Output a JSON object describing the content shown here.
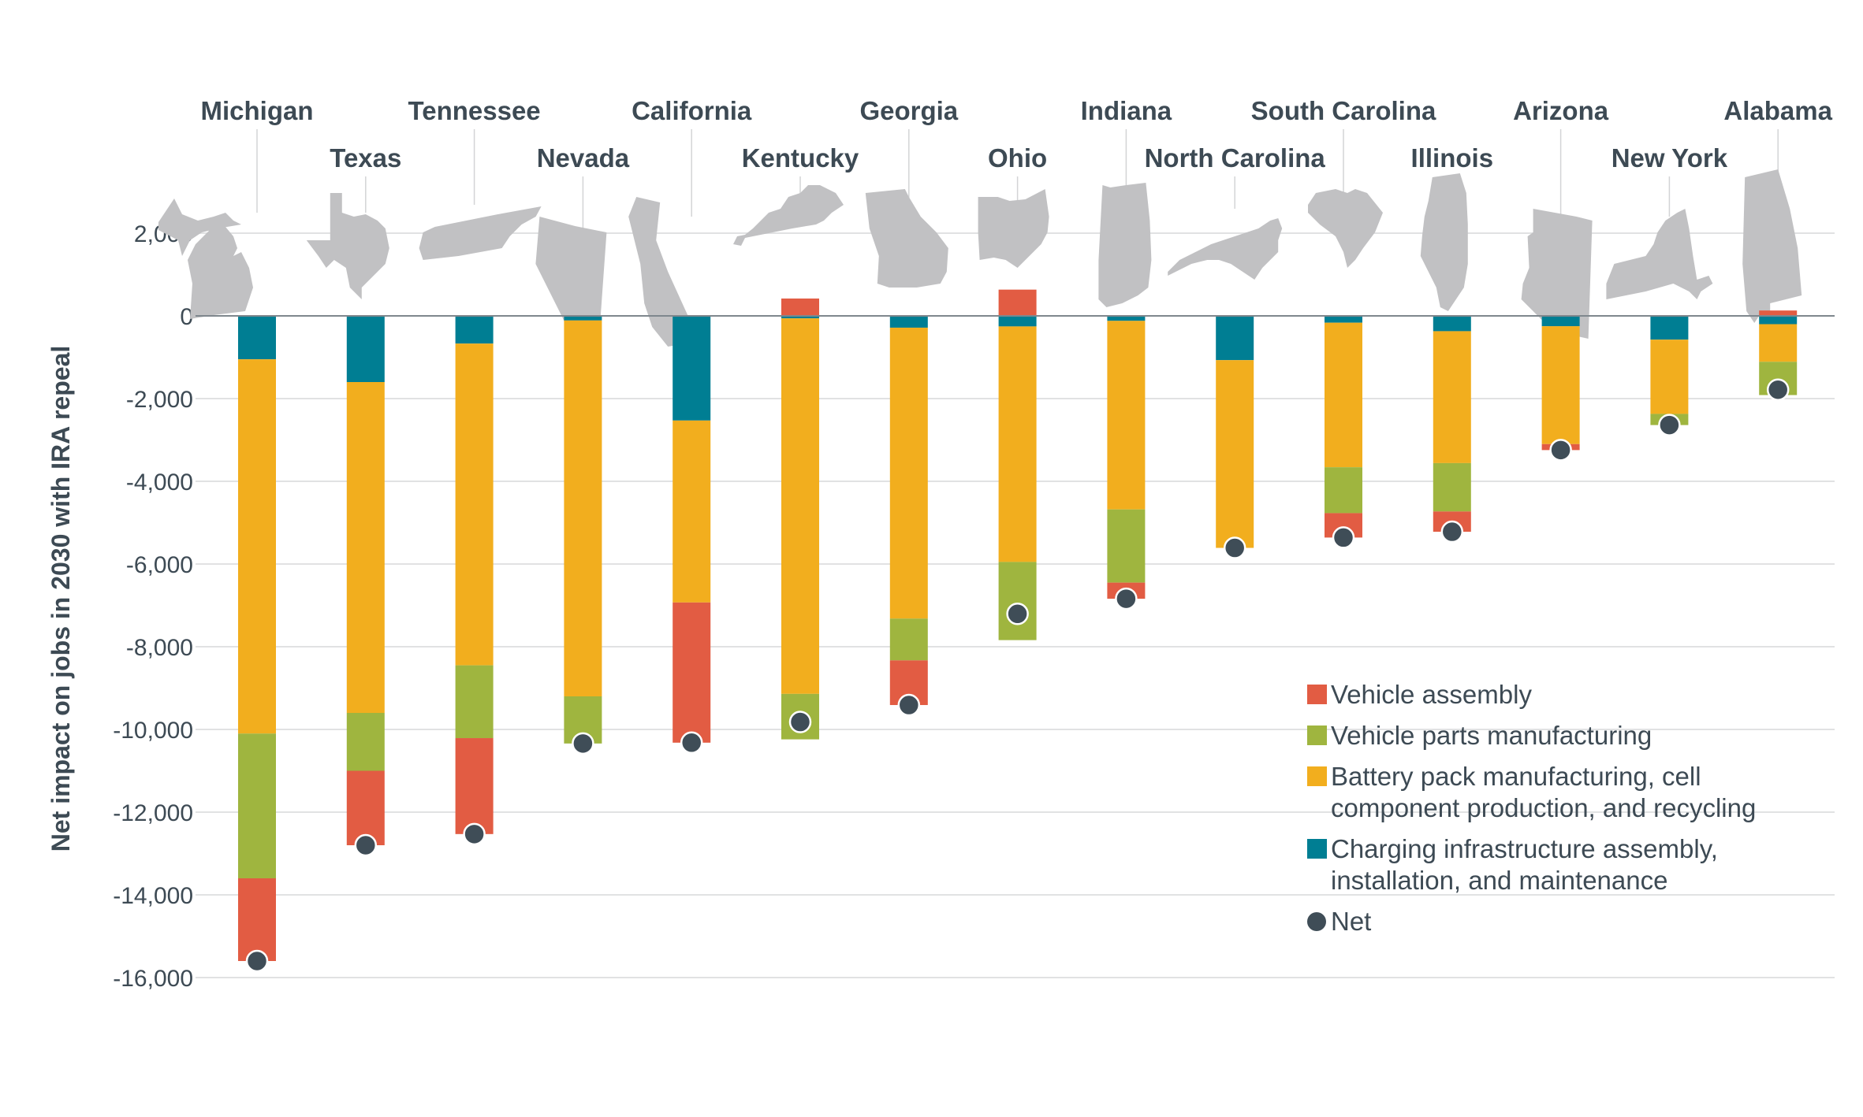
{
  "chart_data": {
    "type": "bar",
    "stacked": true,
    "title": "",
    "xlabel": "",
    "ylabel": "Net impact on jobs in 2030 with IRA repeal",
    "ylim": [
      -16000,
      2000
    ],
    "yticks": [
      2000,
      0,
      -2000,
      -4000,
      -6000,
      -8000,
      -10000,
      -12000,
      -14000,
      -16000
    ],
    "ytick_labels": [
      "2,000",
      "0",
      "-2,000",
      "-4,000",
      "-6,000",
      "-8,000",
      "-10,000",
      "-12,000",
      "-14,000",
      "-16,000"
    ],
    "grid": true,
    "legend_position": "bottom-right",
    "categories": [
      "Michigan",
      "Texas",
      "Tennessee",
      "Nevada",
      "California",
      "Kentucky",
      "Georgia",
      "Ohio",
      "Indiana",
      "North Carolina",
      "South Carolina",
      "Illinois",
      "Arizona",
      "New York",
      "Alabama"
    ],
    "series": [
      {
        "key": "charging",
        "name": "Charging infrastructure assembly, installation, and maintenance",
        "color": "#007e93",
        "values": [
          -1050,
          -1600,
          -670,
          -110,
          -2530,
          -60,
          -285,
          -255,
          -120,
          -1070,
          -165,
          -370,
          -250,
          -575,
          -200
        ]
      },
      {
        "key": "battery",
        "name": "Battery pack manufacturing, cell component production, and recycling",
        "color": "#f2ae1e",
        "values": [
          -9050,
          -8000,
          -7780,
          -9090,
          -4400,
          -9080,
          -7035,
          -5695,
          -4560,
          -4540,
          -3495,
          -3190,
          -2850,
          -1795,
          -910
        ]
      },
      {
        "key": "parts",
        "name": "Vehicle parts manufacturing",
        "color": "#9fb53f",
        "values": [
          -3500,
          -1400,
          -1760,
          -1140,
          0,
          -1100,
          -1010,
          -1890,
          -1770,
          0,
          -1110,
          -1170,
          0,
          -270,
          -805
        ]
      },
      {
        "key": "assembly",
        "name": "Vehicle assembly",
        "color": "#e25c43",
        "values": [
          -2000,
          -1800,
          -2320,
          0,
          -3390,
          420,
          -1080,
          635,
          -390,
          0,
          -590,
          -490,
          -145,
          0,
          130
        ]
      }
    ],
    "net": {
      "name": "Net",
      "color": "#3f4d57",
      "values": [
        -15600,
        -12800,
        -12530,
        -10340,
        -10320,
        -9820,
        -9410,
        -7205,
        -6840,
        -5610,
        -5360,
        -5220,
        -3245,
        -2640,
        -1785
      ]
    },
    "legend": [
      {
        "key": "assembly",
        "lines": [
          "Vehicle assembly"
        ],
        "color": "#e25c43",
        "marker": "square"
      },
      {
        "key": "parts",
        "lines": [
          "Vehicle parts manufacturing"
        ],
        "color": "#9fb53f",
        "marker": "square"
      },
      {
        "key": "battery",
        "lines": [
          "Battery pack manufacturing, cell",
          "component production, and recycling"
        ],
        "color": "#f2ae1e",
        "marker": "square"
      },
      {
        "key": "charging",
        "lines": [
          "Charging infrastructure assembly,",
          "installation, and maintenance"
        ],
        "color": "#007e93",
        "marker": "square"
      },
      {
        "key": "net",
        "lines": [
          "Net"
        ],
        "color": "#3f4d57",
        "marker": "circle"
      }
    ],
    "state_icons": [
      "michigan-shape",
      "texas-shape",
      "tennessee-shape",
      "nevada-shape",
      "california-shape",
      "kentucky-shape",
      "georgia-shape",
      "ohio-shape",
      "indiana-shape",
      "north-carolina-shape",
      "south-carolina-shape",
      "illinois-shape",
      "arizona-shape",
      "new-york-shape",
      "alabama-shape"
    ]
  }
}
